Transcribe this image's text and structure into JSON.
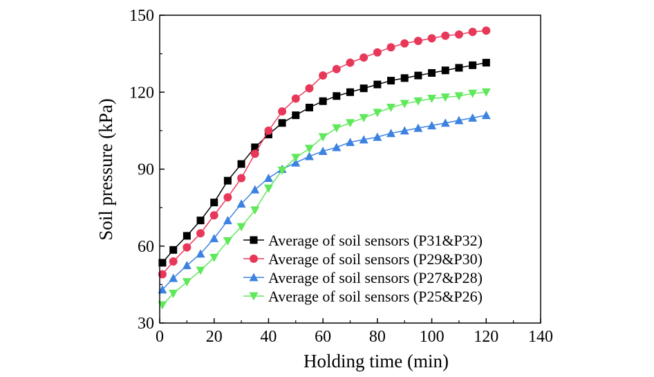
{
  "chart_data": {
    "type": "line",
    "title": "",
    "xlabel": "Holding time (min)",
    "ylabel": "Soil pressure (kPa)",
    "xlim": [
      0,
      140
    ],
    "ylim": [
      30,
      150
    ],
    "xticks": [
      0,
      20,
      40,
      60,
      80,
      100,
      120,
      140
    ],
    "yticks": [
      30,
      60,
      90,
      120,
      150
    ],
    "grid": false,
    "legend_position": "bottom-right",
    "x": [
      1,
      5,
      10,
      15,
      20,
      25,
      30,
      35,
      40,
      45,
      50,
      55,
      60,
      65,
      70,
      75,
      80,
      85,
      90,
      95,
      100,
      105,
      110,
      115,
      120
    ],
    "series": [
      {
        "name": "Average of soil sensors (P31&P32)",
        "marker": "square",
        "color": "#000000",
        "values": [
          53.5,
          58.5,
          64,
          70,
          77,
          85.5,
          92,
          98.5,
          103.5,
          108,
          111,
          114,
          116.5,
          118.5,
          120,
          121.5,
          123,
          124.5,
          125.5,
          126.5,
          127.5,
          128.5,
          129.5,
          130.5,
          131.5
        ]
      },
      {
        "name": "Average of soil sensors (P29&P30)",
        "marker": "circle",
        "color": "#e8385a",
        "values": [
          49,
          54,
          59.5,
          65,
          72,
          79,
          86.5,
          96,
          105,
          112.5,
          117.5,
          121.5,
          126.5,
          129,
          131.5,
          133.5,
          135.5,
          137.5,
          139,
          140,
          141,
          142,
          142.5,
          143.5,
          144
        ]
      },
      {
        "name": "Average of soil sensors (P27&P28)",
        "marker": "triangle-up",
        "color": "#3c82e0",
        "values": [
          43,
          47.5,
          52.5,
          57,
          63,
          70,
          76.5,
          82,
          86.5,
          90,
          92.5,
          95,
          97,
          98.5,
          100.5,
          101.5,
          102.5,
          104,
          105,
          106,
          107,
          108,
          109,
          110,
          111
        ]
      },
      {
        "name": "Average of soil sensors (P25&P26)",
        "marker": "triangle-down",
        "color": "#5ee85a",
        "values": [
          37,
          41.5,
          46,
          50.5,
          55.5,
          62,
          67.5,
          74,
          82.5,
          89.5,
          94.5,
          98,
          102.5,
          106,
          108,
          110,
          112,
          114,
          115.5,
          116.5,
          117.5,
          118,
          118.5,
          119.5,
          120
        ]
      }
    ]
  }
}
